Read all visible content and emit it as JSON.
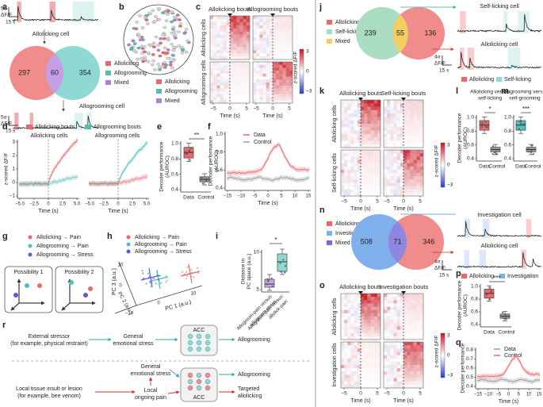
{
  "a": {
    "label": "a",
    "top_scale": [
      "5σ",
      "ΔF/F",
      "15 s"
    ],
    "cell1": "Allolicking cell",
    "venn": [
      "297",
      "60",
      "354"
    ],
    "legend": [
      "Allolicking",
      "Allogrooming",
      "Mixed"
    ],
    "cell2": "Allogrooming cell",
    "bottom_scale": [
      "5σ",
      "ΔF/F",
      "15 s"
    ]
  },
  "b": {
    "label": "b",
    "legend": [
      "Allolicking",
      "Allogrooming",
      "Mixed"
    ]
  },
  "c": {
    "label": "c",
    "columns": [
      "Allolicking bouts",
      "Allogrooming bouts"
    ],
    "rows": [
      "Allolicking cells",
      "Allogrooming cells"
    ],
    "colorbar": [
      "3",
      "0",
      "−3"
    ],
    "colorbar_label": "z-scored ΔF/F",
    "xticks": [
      "−5",
      "0",
      "5"
    ],
    "xlabel": "Time (s)"
  },
  "d": {
    "label": "d",
    "legend": [
      "Allolicking bouts",
      "Allogrooming bouts"
    ],
    "panels": [
      "Allolicking cells",
      "Allogrooming cells"
    ],
    "ylabel": "z-scored ΔF/F",
    "yticks": [
      "3",
      "2",
      "1",
      "0",
      "−1"
    ],
    "xticks": [
      "−5.0",
      "−2.5",
      "0",
      "2.5",
      "5.0"
    ],
    "xlabel": "Time (s)"
  },
  "e": {
    "label": "e",
    "ylabel": [
      "Decoder performance",
      "(AUROC)"
    ],
    "sig": "**",
    "yticks": [
      "1.0",
      "0.8",
      "0.6",
      "0.4"
    ],
    "groups": [
      "Data",
      "Control"
    ]
  },
  "f": {
    "label": "f",
    "legend": [
      "Data",
      "Control"
    ],
    "ylabel": [
      "Decoder performance",
      "(AUROC)"
    ],
    "yticks": [
      "1.0",
      "0.8",
      "0.6",
      "0.4"
    ],
    "xticks": [
      "−15",
      "−10",
      "−5",
      "0",
      "5",
      "10",
      "15"
    ],
    "xlabel": "Time (s)"
  },
  "g": {
    "label": "g",
    "legend": [
      "Allolicking → Pain",
      "Allogrooming → Pain",
      "Allogrooming → Stress"
    ],
    "boxes": [
      "Possibility 1",
      "Possibility 2"
    ]
  },
  "h": {
    "label": "h",
    "legend": [
      "Allolicking → Pain",
      "Allogrooming → Pain",
      "Allogrooming → Stress"
    ],
    "axes": [
      "PC 1 (a.u.)",
      "PC 2 (a.u.)",
      "PC 3 (a.u.)"
    ],
    "ticks": [
      "10",
      "0",
      "−10",
      "0",
      "10"
    ]
  },
  "i": {
    "label": "i",
    "sig": "*",
    "ylabel": [
      "Distance in",
      "PC space (a.u.)"
    ],
    "yticks": [
      "10",
      "5"
    ],
    "groups": [
      [
        "Allogroom-pain versus",
        "allogroom-stress"
      ],
      [
        "Allogroom-pain versus",
        "allolick-pain"
      ]
    ]
  },
  "r": {
    "label": "r",
    "external": [
      "External stressor",
      "(for example, physical restraint)"
    ],
    "general1": [
      "General",
      "emotional stress"
    ],
    "acc1": "ACC",
    "out1": "Allogrooming",
    "general2": [
      "General",
      "emotional stress"
    ],
    "local": [
      "Local tissue insult or lesion",
      "(for example, bee venom)"
    ],
    "pain": [
      "Local",
      "ongoing pain"
    ],
    "acc2": "ACC",
    "out2": "Allogrooming",
    "out3": [
      "Targeted",
      "allolicking"
    ]
  },
  "j": {
    "label": "j",
    "legend": [
      "Allolicking",
      "Self-licking",
      "Mixed"
    ],
    "venn": [
      "239",
      "55",
      "136"
    ],
    "cells": [
      "Self-licking cell",
      "Allolicking cell"
    ],
    "scale": [
      "4σ",
      "ΔF/F",
      "15 s"
    ],
    "trace_legend": [
      "Allolicking",
      "Self-licking"
    ]
  },
  "k": {
    "label": "k",
    "columns": [
      "Allolicking bouts",
      "Self-licking bouts"
    ],
    "rows": [
      "Allolicking cells",
      "Self-licking cells"
    ],
    "colorbar": [
      "3",
      "0",
      "−3"
    ],
    "colorbar_label": "z-scored ΔF/F",
    "xticks": [
      "−5",
      "0",
      "5"
    ],
    "xlabel": "Time (s)"
  },
  "l": {
    "label": "l",
    "title": [
      "Allolicking versus",
      "self-licking"
    ],
    "sig": "*",
    "ylabel": [
      "Decoder performance",
      "(AUROC)"
    ],
    "yticks": [
      "1.0",
      "0.8",
      "0.6",
      "0.4"
    ],
    "groups": [
      "Data",
      "Control"
    ]
  },
  "m": {
    "label": "m",
    "title": [
      "Allogrooming versus",
      "self-grooming"
    ],
    "sig": "***",
    "yticks": [
      "1.0",
      "0.8",
      "0.6",
      "0.4"
    ],
    "groups": [
      "Data",
      "Control"
    ]
  },
  "n": {
    "label": "n",
    "legend": [
      "Allolicking",
      "Investigation",
      "Mixed"
    ],
    "venn": [
      "508",
      "71",
      "346"
    ],
    "cells": [
      "Investigation cell",
      "Allolicking cell"
    ],
    "scale": [
      "4σ",
      "ΔF/F",
      "15 s"
    ],
    "trace_legend": [
      "Allolicking",
      "Investigation"
    ]
  },
  "o": {
    "label": "o",
    "columns": [
      "Allolicking bouts",
      "Investigation bouts"
    ],
    "rows": [
      "Allolicking cells",
      "Investigation cells"
    ],
    "colorbar": [
      "3",
      "0",
      "−3"
    ],
    "colorbar_label": "z-scored ΔF/F",
    "xticks": [
      "−5",
      "0",
      "5"
    ],
    "xlabel": "Time (s)"
  },
  "p": {
    "label": "p",
    "sig": "***",
    "ylabel": [
      "Decoder performance",
      "(AUROC)"
    ],
    "yticks": [
      "1.0",
      "0.8",
      "0.6",
      "0.4"
    ],
    "groups": [
      "Data",
      "Control"
    ]
  },
  "q": {
    "label": "q",
    "legend": [
      "Data",
      "Control"
    ],
    "ylabel": [
      "Decoder performance"
    ],
    "yticks": [
      "0.8",
      "0.7",
      "0.6",
      "0.5",
      "0.4"
    ],
    "xticks": [
      "−15",
      "−10",
      "−5",
      "0",
      "5",
      "10",
      "15"
    ],
    "xlabel": "Time (s)"
  }
}
